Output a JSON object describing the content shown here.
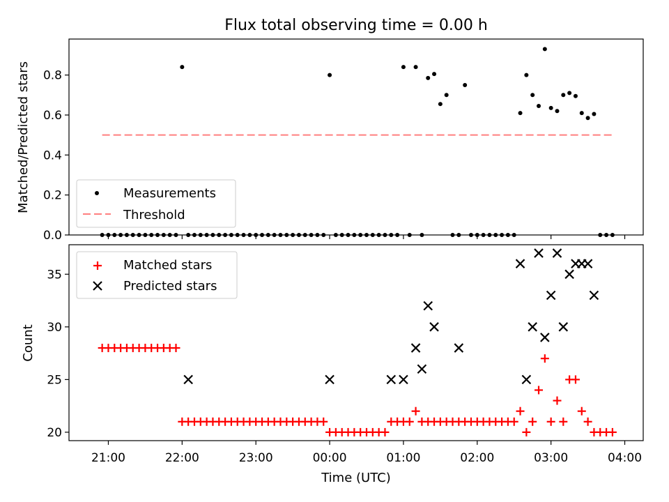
{
  "chart_data": [
    {
      "type": "scatter",
      "title": "Flux total observing time = 0.00 h",
      "xlabel": "",
      "ylabel": "Matched/Predicted stars",
      "xlim": [
        "20:55",
        "04:10"
      ],
      "ylim": [
        0,
        0.98
      ],
      "yticks": [
        0.0,
        0.2,
        0.4,
        0.6,
        0.8
      ],
      "ytick_labels": [
        "0.0",
        "0.2",
        "0.4",
        "0.6",
        "0.8"
      ],
      "legend": "lower-left",
      "grid": false,
      "series": [
        {
          "name": "Measurements",
          "marker": "dot",
          "color": "#000000",
          "x": [
            "20:55",
            "21:00",
            "21:05",
            "21:10",
            "21:15",
            "21:20",
            "21:25",
            "21:30",
            "21:35",
            "21:40",
            "21:45",
            "21:50",
            "21:55",
            "22:00",
            "22:05",
            "22:10",
            "22:15",
            "22:20",
            "22:25",
            "22:30",
            "22:35",
            "22:40",
            "22:45",
            "22:50",
            "22:55",
            "23:00",
            "23:05",
            "23:10",
            "23:15",
            "23:20",
            "23:25",
            "23:30",
            "23:35",
            "23:40",
            "23:45",
            "23:50",
            "23:55",
            "00:00",
            "00:05",
            "00:10",
            "00:15",
            "00:20",
            "00:25",
            "00:30",
            "00:35",
            "00:40",
            "00:45",
            "00:50",
            "00:55",
            "01:00",
            "01:05",
            "01:10",
            "01:15",
            "01:20",
            "01:25",
            "01:30",
            "01:35",
            "01:40",
            "01:45",
            "01:50",
            "01:55",
            "02:00",
            "02:05",
            "02:10",
            "02:15",
            "02:20",
            "02:25",
            "02:30",
            "02:35",
            "02:40",
            "02:45",
            "02:50",
            "02:55",
            "03:00",
            "03:05",
            "03:10",
            "03:15",
            "03:20",
            "03:25",
            "03:30",
            "03:35",
            "03:40",
            "03:45",
            "03:50"
          ],
          "y": [
            0,
            0,
            0,
            0,
            0,
            0,
            0,
            0,
            0,
            0,
            0,
            0,
            0,
            0.84,
            0,
            0,
            0,
            0,
            0,
            0,
            0,
            0,
            0,
            0,
            0,
            0,
            0,
            0,
            0,
            0,
            0,
            0,
            0,
            0,
            0,
            0,
            0,
            0.8,
            0,
            0,
            0,
            0,
            0,
            0,
            0,
            0,
            0,
            0,
            0,
            0.84,
            0,
            0.84,
            0,
            0.785,
            0.805,
            0.655,
            0.7,
            0,
            0,
            0.75,
            0,
            0,
            0,
            0,
            0,
            0,
            0,
            0,
            0.61,
            0.8,
            0.7,
            0.645,
            0.93,
            0.635,
            0.62,
            0.7,
            0.71,
            0.695,
            0.61,
            0.585,
            0.605,
            0,
            0,
            0
          ]
        },
        {
          "name": "Threshold",
          "style": "dashed",
          "color": "#ff7f7f",
          "x": [
            "20:55",
            "03:50"
          ],
          "y": [
            0.5,
            0.5
          ]
        }
      ]
    },
    {
      "type": "scatter",
      "title": "",
      "xlabel": "Time (UTC)",
      "ylabel": "Count",
      "xlim": [
        "20:28",
        "04:15"
      ],
      "ylim": [
        19.2,
        37.8
      ],
      "xticks": [
        "21:00",
        "22:00",
        "23:00",
        "00:00",
        "01:00",
        "02:00",
        "03:00",
        "04:00"
      ],
      "yticks": [
        20,
        25,
        30,
        35
      ],
      "ytick_labels": [
        "20",
        "25",
        "30",
        "35"
      ],
      "legend": "top-left",
      "grid": false,
      "series": [
        {
          "name": "Matched stars",
          "marker": "plus",
          "color": "#ff0000",
          "x": [
            "20:55",
            "21:00",
            "21:05",
            "21:10",
            "21:15",
            "21:20",
            "21:25",
            "21:30",
            "21:35",
            "21:40",
            "21:45",
            "21:50",
            "21:55",
            "22:00",
            "22:05",
            "22:10",
            "22:15",
            "22:20",
            "22:25",
            "22:30",
            "22:35",
            "22:40",
            "22:45",
            "22:50",
            "22:55",
            "23:00",
            "23:05",
            "23:10",
            "23:15",
            "23:20",
            "23:25",
            "23:30",
            "23:35",
            "23:40",
            "23:45",
            "23:50",
            "23:55",
            "00:00",
            "00:05",
            "00:10",
            "00:15",
            "00:20",
            "00:25",
            "00:30",
            "00:35",
            "00:40",
            "00:45",
            "00:50",
            "00:55",
            "01:00",
            "01:05",
            "01:10",
            "01:15",
            "01:20",
            "01:25",
            "01:30",
            "01:35",
            "01:40",
            "01:45",
            "01:50",
            "01:55",
            "02:00",
            "02:05",
            "02:10",
            "02:15",
            "02:20",
            "02:25",
            "02:30",
            "02:35",
            "02:40",
            "02:45",
            "02:50",
            "02:55",
            "03:00",
            "03:05",
            "03:10",
            "03:15",
            "03:20",
            "03:25",
            "03:30",
            "03:35",
            "03:40",
            "03:45",
            "03:50"
          ],
          "y": [
            28,
            28,
            28,
            28,
            28,
            28,
            28,
            28,
            28,
            28,
            28,
            28,
            28,
            21,
            21,
            21,
            21,
            21,
            21,
            21,
            21,
            21,
            21,
            21,
            21,
            21,
            21,
            21,
            21,
            21,
            21,
            21,
            21,
            21,
            21,
            21,
            21,
            20,
            20,
            20,
            20,
            20,
            20,
            20,
            20,
            20,
            20,
            21,
            21,
            21,
            21,
            22,
            21,
            21,
            21,
            21,
            21,
            21,
            21,
            21,
            21,
            21,
            21,
            21,
            21,
            21,
            21,
            21,
            22,
            20,
            21,
            24,
            27,
            21,
            23,
            21,
            25,
            25,
            22,
            21,
            20,
            20,
            20,
            20
          ]
        },
        {
          "name": "Predicted stars",
          "marker": "x",
          "color": "#000000",
          "x": [
            "22:05",
            "00:00",
            "00:50",
            "01:00",
            "01:10",
            "01:15",
            "01:20",
            "01:25",
            "01:45",
            "02:35",
            "02:40",
            "02:45",
            "02:50",
            "02:55",
            "03:00",
            "03:05",
            "03:10",
            "03:15",
            "03:20",
            "03:25",
            "03:30",
            "03:35"
          ],
          "y": [
            25,
            25,
            25,
            25,
            28,
            26,
            32,
            30,
            28,
            36,
            25,
            30,
            37,
            29,
            33,
            37,
            30,
            35,
            36,
            36,
            36,
            33
          ]
        }
      ]
    }
  ]
}
